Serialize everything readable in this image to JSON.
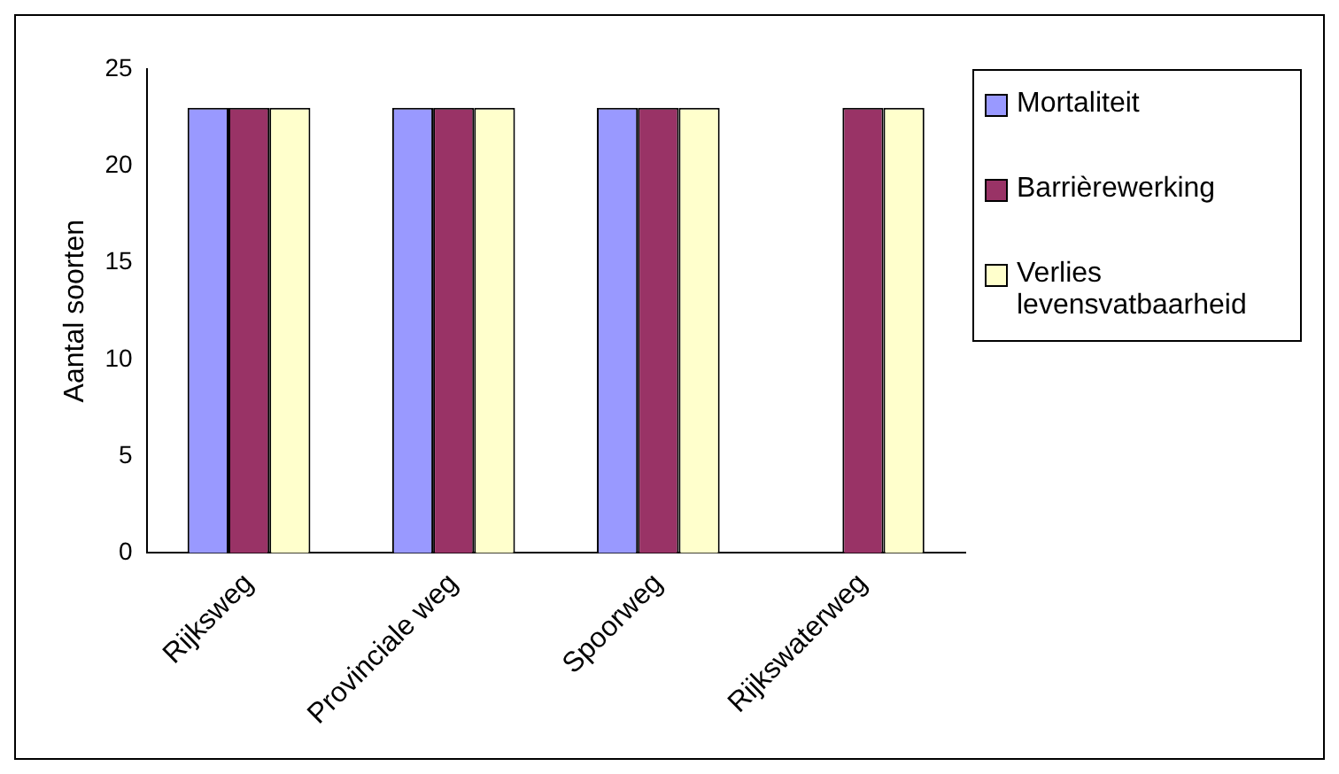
{
  "chart_data": {
    "type": "bar",
    "ylabel": "Aantal soorten",
    "categories": [
      "Rijksweg",
      "Provinciale weg",
      "Spoorweg",
      "Rijkswaterweg"
    ],
    "series": [
      {
        "name": "Mortaliteit",
        "color": "#9999ff",
        "values": [
          23,
          23,
          23,
          null
        ]
      },
      {
        "name": "Barrièrewerking",
        "color": "#993366",
        "values": [
          23,
          23,
          23,
          23
        ]
      },
      {
        "name": "Verlies levensvatbaarheid",
        "color": "#ffffcc",
        "values": [
          23,
          23,
          23,
          23
        ]
      }
    ],
    "ylim": [
      0,
      25
    ],
    "yticks": [
      0,
      5,
      10,
      15,
      20,
      25
    ],
    "grid": false,
    "legend": "right"
  }
}
